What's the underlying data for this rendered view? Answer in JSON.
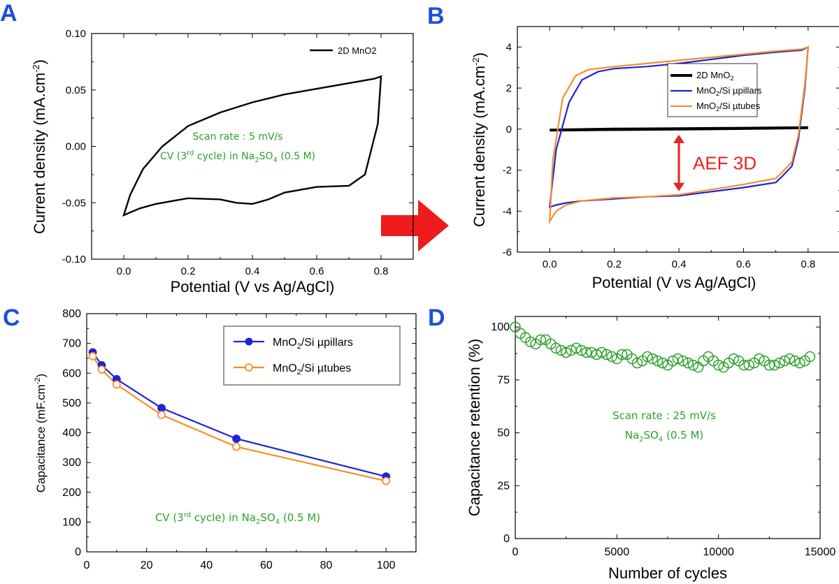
{
  "panels": {
    "a": {
      "label": "A",
      "ann_line1": "Scan rate : 5 mV/s",
      "ann_line2_pre": "CV (3",
      "ann_line2_sup": "rd",
      "ann_line2_mid": " cycle) in Na",
      "ann_sub1": "2",
      "ann_so": "SO",
      "ann_sub2": "4",
      "ann_end": " (0.5 M)"
    },
    "b": {
      "label": "B",
      "aef": "AEF 3D"
    },
    "c": {
      "label": "C",
      "ann_pre": "CV (3",
      "ann_sup": "rd",
      "ann_mid": " cycle) in Na",
      "ann_sub1": "2",
      "ann_so": "SO",
      "ann_sub2": "4",
      "ann_end": " (0.5 M)"
    },
    "d": {
      "label": "D",
      "ann_line1": "Scan rate : 25 mV/s",
      "ann_na": "Na",
      "ann_sub1": "2",
      "ann_so": "SO",
      "ann_sub2": "4",
      "ann_end": " (0.5 M)"
    }
  },
  "colors": {
    "black": "#000000",
    "blue": "#1f22d6",
    "orange": "#f2902a",
    "green": "#2aa12a",
    "red": "#e8231c"
  },
  "chart_data": [
    {
      "id": "A",
      "type": "line",
      "xlabel": "Potential (V vs Ag/AgCl)",
      "ylabel_pre": "Current density (mA.cm",
      "ylabel_sup": "-2",
      "ylabel_post": ")",
      "xlim": [
        -0.1,
        0.9
      ],
      "ylim": [
        -0.1,
        0.1
      ],
      "xticks": [
        "0.0",
        "0.2",
        "0.4",
        "0.6",
        "0.8"
      ],
      "yticks": [
        "-0.10",
        "-0.05",
        "0.00",
        "0.05",
        "0.10"
      ],
      "legend": "top-right",
      "series": [
        {
          "name": "2D MnO2",
          "color": "#000000",
          "x": [
            0.0,
            0.02,
            0.06,
            0.12,
            0.2,
            0.3,
            0.4,
            0.5,
            0.6,
            0.7,
            0.78,
            0.8,
            0.79,
            0.75,
            0.7,
            0.6,
            0.5,
            0.45,
            0.4,
            0.35,
            0.3,
            0.2,
            0.1,
            0.05,
            0.0
          ],
          "y": [
            -0.061,
            -0.043,
            -0.02,
            0.0,
            0.018,
            0.03,
            0.039,
            0.046,
            0.051,
            0.056,
            0.06,
            0.062,
            0.02,
            -0.025,
            -0.035,
            -0.036,
            -0.041,
            -0.047,
            -0.051,
            -0.05,
            -0.047,
            -0.046,
            -0.051,
            -0.055,
            -0.061
          ]
        }
      ]
    },
    {
      "id": "B",
      "type": "line",
      "xlabel": "Potential (V vs Ag/AgCl)",
      "ylabel_pre": "Current density (mA.cm",
      "ylabel_sup": "-2",
      "ylabel_post": ")",
      "xlim": [
        -0.1,
        0.9
      ],
      "ylim": [
        -6,
        5
      ],
      "xticks": [
        "0.0",
        "0.2",
        "0.4",
        "0.6",
        "0.8"
      ],
      "yticks": [
        "-6",
        "-4",
        "-2",
        "0",
        "2",
        "4"
      ],
      "legend": "top-right",
      "series": [
        {
          "name_pre": "2D MnO",
          "name_sub": "2",
          "name_post": "",
          "color": "#000000",
          "x": [
            0.0,
            0.2,
            0.4,
            0.6,
            0.8,
            0.6,
            0.4,
            0.2,
            0.0
          ],
          "y": [
            -0.05,
            -0.02,
            0.0,
            0.03,
            0.07,
            0.04,
            0.02,
            0.0,
            -0.05
          ]
        },
        {
          "name_pre": "MnO",
          "name_sub": "2",
          "name_post": "/Si µpillars",
          "color": "#1f22d6",
          "x": [
            0.0,
            0.02,
            0.06,
            0.1,
            0.15,
            0.2,
            0.3,
            0.4,
            0.5,
            0.6,
            0.7,
            0.78,
            0.8,
            0.79,
            0.77,
            0.75,
            0.72,
            0.7,
            0.6,
            0.5,
            0.4,
            0.3,
            0.2,
            0.1,
            0.05,
            0.02,
            0.0
          ],
          "y": [
            -3.8,
            -1.0,
            1.3,
            2.4,
            2.8,
            2.95,
            3.05,
            3.2,
            3.4,
            3.6,
            3.75,
            3.85,
            4.0,
            2.0,
            -0.5,
            -1.8,
            -2.3,
            -2.6,
            -2.85,
            -3.05,
            -3.25,
            -3.3,
            -3.4,
            -3.5,
            -3.6,
            -3.7,
            -3.8
          ]
        },
        {
          "name_pre": "MnO",
          "name_sub": "2",
          "name_post": "/Si µtubes",
          "color": "#f2902a",
          "x": [
            0.0,
            0.01,
            0.04,
            0.08,
            0.12,
            0.2,
            0.3,
            0.4,
            0.5,
            0.6,
            0.7,
            0.78,
            0.8,
            0.79,
            0.77,
            0.75,
            0.72,
            0.7,
            0.6,
            0.5,
            0.4,
            0.3,
            0.2,
            0.1,
            0.05,
            0.02,
            0.0
          ],
          "y": [
            -4.5,
            -1.5,
            1.5,
            2.6,
            2.9,
            3.05,
            3.2,
            3.35,
            3.5,
            3.65,
            3.8,
            3.9,
            4.0,
            2.2,
            -0.3,
            -1.6,
            -2.1,
            -2.4,
            -2.7,
            -2.95,
            -3.2,
            -3.3,
            -3.35,
            -3.5,
            -3.7,
            -4.0,
            -4.5
          ]
        }
      ],
      "annotation": {
        "text": "AEF 3D",
        "x": 0.4,
        "y_from": 0.0,
        "y_to": -3.3
      }
    },
    {
      "id": "C",
      "type": "line",
      "xlabel": "",
      "ylabel_pre": "Capacitance (mF.cm",
      "ylabel_sup": "-2",
      "ylabel_post": ")",
      "xlim": [
        0,
        110
      ],
      "ylim": [
        0,
        800
      ],
      "xticks": [
        "0",
        "20",
        "40",
        "60",
        "80",
        "100"
      ],
      "yticks": [
        "0",
        "100",
        "200",
        "300",
        "400",
        "500",
        "600",
        "700",
        "800"
      ],
      "legend": "top-right",
      "series": [
        {
          "name_pre": "MnO",
          "name_sub": "2",
          "name_post": "/Si µpillars",
          "color": "#1f22d6",
          "marker": "filled",
          "x": [
            2,
            5,
            10,
            25,
            50,
            100
          ],
          "y": [
            670,
            627,
            580,
            483,
            380,
            253
          ]
        },
        {
          "name_pre": "MnO",
          "name_sub": "2",
          "name_post": "/Si µtubes",
          "color": "#f2902a",
          "marker": "open",
          "x": [
            2,
            5,
            10,
            25,
            50,
            100
          ],
          "y": [
            657,
            612,
            562,
            460,
            353,
            238
          ]
        }
      ]
    },
    {
      "id": "D",
      "type": "scatter",
      "xlabel": "Number of cycles",
      "ylabel": "Capacitance retention (%)",
      "xlim": [
        0,
        15000
      ],
      "ylim": [
        0,
        105
      ],
      "xticks": [
        "0",
        "5000",
        "10000",
        "15000"
      ],
      "yticks": [
        "0",
        "25",
        "50",
        "75",
        "100"
      ],
      "series": [
        {
          "color": "#2aa12a",
          "marker": "open",
          "x": [
            0,
            250,
            500,
            750,
            1000,
            1250,
            1500,
            1750,
            2000,
            2250,
            2500,
            2750,
            3000,
            3250,
            3500,
            3750,
            4000,
            4250,
            4500,
            4750,
            5000,
            5250,
            5500,
            5750,
            6000,
            6250,
            6500,
            6750,
            7000,
            7250,
            7500,
            7750,
            8000,
            8250,
            8500,
            8750,
            9000,
            9250,
            9500,
            9750,
            10000,
            10250,
            10500,
            10750,
            11000,
            11250,
            11500,
            11750,
            12000,
            12250,
            12500,
            12750,
            13000,
            13250,
            13500,
            13750,
            14000,
            14250,
            14500
          ],
          "y": [
            100,
            97,
            95,
            93,
            92,
            94,
            94,
            92,
            90,
            89,
            88,
            89,
            90,
            89,
            88,
            88,
            87,
            88,
            87,
            86,
            85,
            87,
            87,
            85,
            83,
            84,
            86,
            85,
            84,
            83,
            82,
            84,
            85,
            84,
            83,
            82,
            81,
            84,
            86,
            84,
            82,
            81,
            83,
            85,
            84,
            82,
            82,
            83,
            85,
            84,
            82,
            82,
            83,
            84,
            85,
            84,
            83,
            84,
            86
          ]
        }
      ]
    }
  ]
}
